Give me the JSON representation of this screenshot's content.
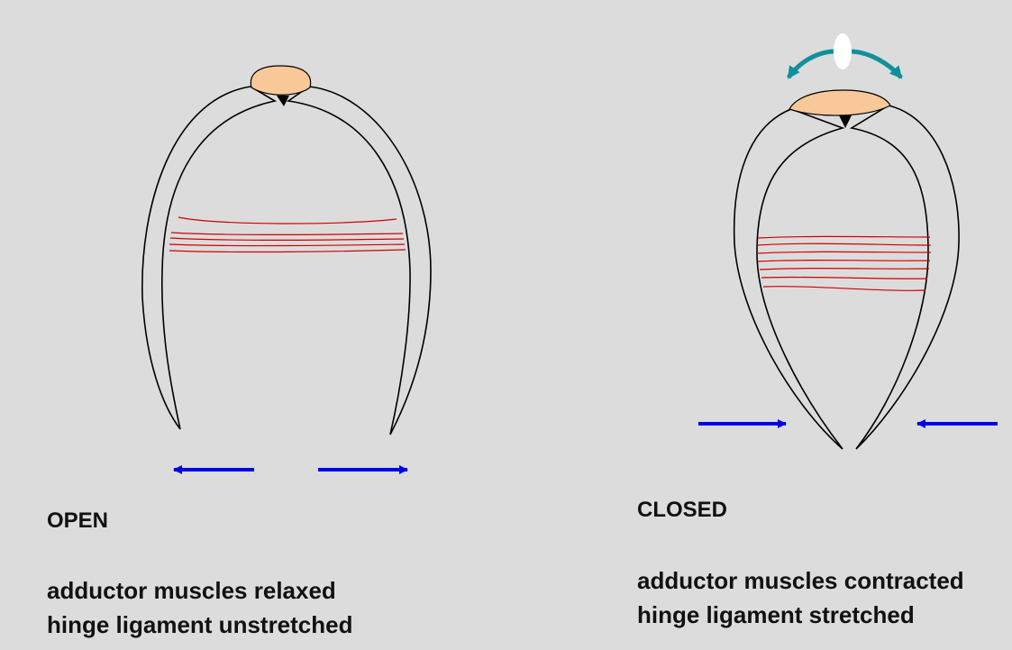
{
  "colors": {
    "background": "#dcdcdc",
    "shell_outline": "#000000",
    "ligament": "#f8c898",
    "muscle": "#d00000",
    "force_arrow": "#0000e6",
    "rotation_arrow": "#10909a",
    "pivot": "#ffffff"
  },
  "open_panel": {
    "title": "OPEN",
    "line1": "adductor muscles relaxed",
    "line2": "hinge ligament unstretched"
  },
  "closed_panel": {
    "title": "CLOSED",
    "line1": "adductor muscles contracted",
    "line2": "hinge ligament stretched"
  }
}
